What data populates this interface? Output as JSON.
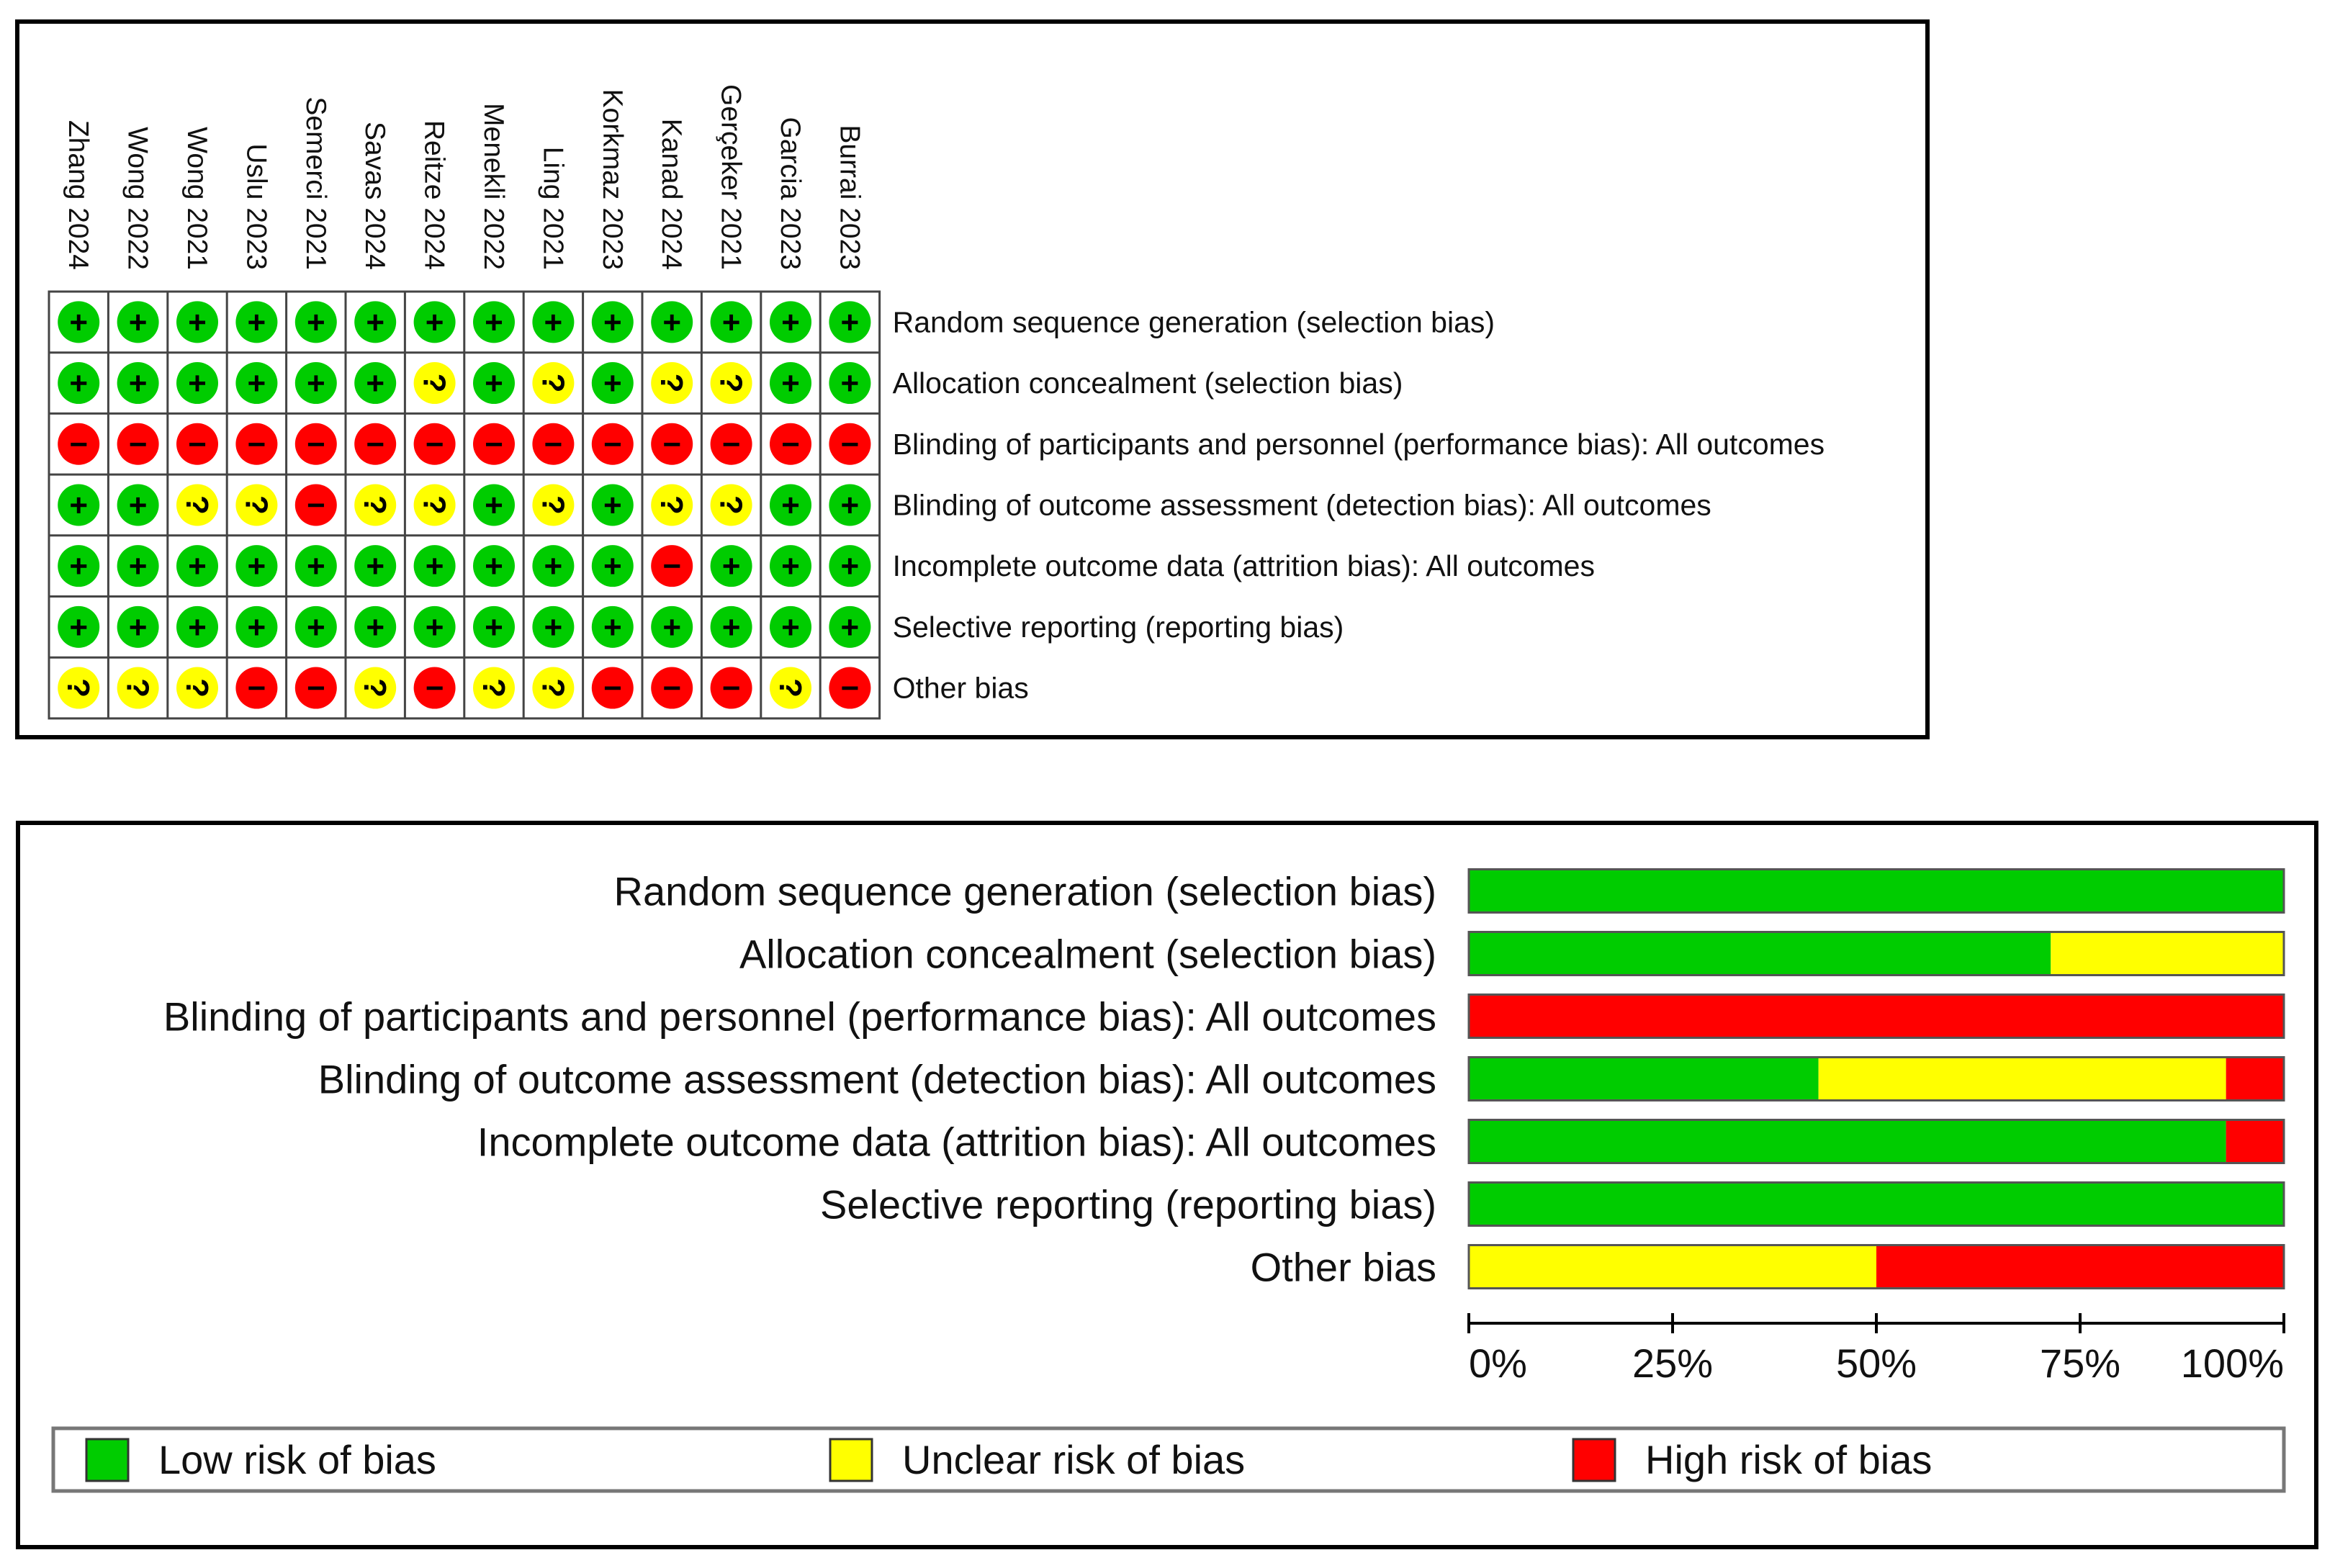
{
  "summary": {
    "studies": [
      "Zhang 2024",
      "Wong 2022",
      "Wong 2021",
      "Uslu 2023",
      "Semerci 2021",
      "Savas 2024",
      "Reitze 2024",
      "Menekli 2022",
      "Ling 2021",
      "Korkmaz 2023",
      "Kanad 2024",
      "Gerçeker 2021",
      "Garcia 2023",
      "Burrai 2023"
    ],
    "domains": [
      "Random sequence generation (selection bias)",
      "Allocation concealment (selection bias)",
      "Blinding of participants and personnel (performance bias): All outcomes",
      "Blinding of outcome assessment (detection bias): All outcomes",
      "Incomplete outcome data (attrition bias): All outcomes",
      "Selective reporting (reporting bias)",
      "Other bias"
    ],
    "judgements": [
      [
        "low",
        "low",
        "low",
        "low",
        "low",
        "low",
        "low",
        "low",
        "low",
        "low",
        "low",
        "low",
        "low",
        "low"
      ],
      [
        "low",
        "low",
        "low",
        "low",
        "low",
        "low",
        "unclear",
        "low",
        "unclear",
        "low",
        "unclear",
        "unclear",
        "low",
        "low"
      ],
      [
        "high",
        "high",
        "high",
        "high",
        "high",
        "high",
        "high",
        "high",
        "high",
        "high",
        "high",
        "high",
        "high",
        "high"
      ],
      [
        "low",
        "low",
        "unclear",
        "unclear",
        "high",
        "unclear",
        "unclear",
        "low",
        "unclear",
        "low",
        "unclear",
        "unclear",
        "low",
        "low"
      ],
      [
        "low",
        "low",
        "low",
        "low",
        "low",
        "low",
        "low",
        "low",
        "low",
        "low",
        "high",
        "low",
        "low",
        "low"
      ],
      [
        "low",
        "low",
        "low",
        "low",
        "low",
        "low",
        "low",
        "low",
        "low",
        "low",
        "low",
        "low",
        "low",
        "low"
      ],
      [
        "unclear",
        "unclear",
        "unclear",
        "high",
        "high",
        "unclear",
        "high",
        "unclear",
        "unclear",
        "high",
        "high",
        "high",
        "unclear",
        "high"
      ]
    ],
    "symbols": {
      "low": "+",
      "unclear": "?",
      "high": "−"
    }
  },
  "chart_data": {
    "type": "bar",
    "orientation": "horizontal",
    "stacked": true,
    "categories": [
      "Random sequence generation (selection bias)",
      "Allocation concealment (selection bias)",
      "Blinding of participants and personnel (performance bias): All outcomes",
      "Blinding of outcome assessment (detection bias): All outcomes",
      "Incomplete outcome data (attrition bias): All outcomes",
      "Selective reporting (reporting bias)",
      "Other bias"
    ],
    "series": [
      {
        "name": "Low risk of bias",
        "values": [
          100,
          71.4,
          0,
          42.9,
          92.9,
          100,
          0
        ]
      },
      {
        "name": "Unclear risk of bias",
        "values": [
          0,
          28.6,
          0,
          50.0,
          0,
          0,
          50.0
        ]
      },
      {
        "name": "High risk of bias",
        "values": [
          0,
          0,
          100,
          7.1,
          7.1,
          0,
          50.0
        ]
      }
    ],
    "xlim": [
      0,
      100
    ],
    "xticks": [
      "0%",
      "25%",
      "50%",
      "75%",
      "100%"
    ],
    "legend": [
      "Low risk of bias",
      "Unclear risk of bias",
      "High risk of bias"
    ],
    "legend_position": "bottom"
  },
  "colors": {
    "low": "#00cc00",
    "unclear": "#ffff00",
    "high": "#ff0000"
  }
}
